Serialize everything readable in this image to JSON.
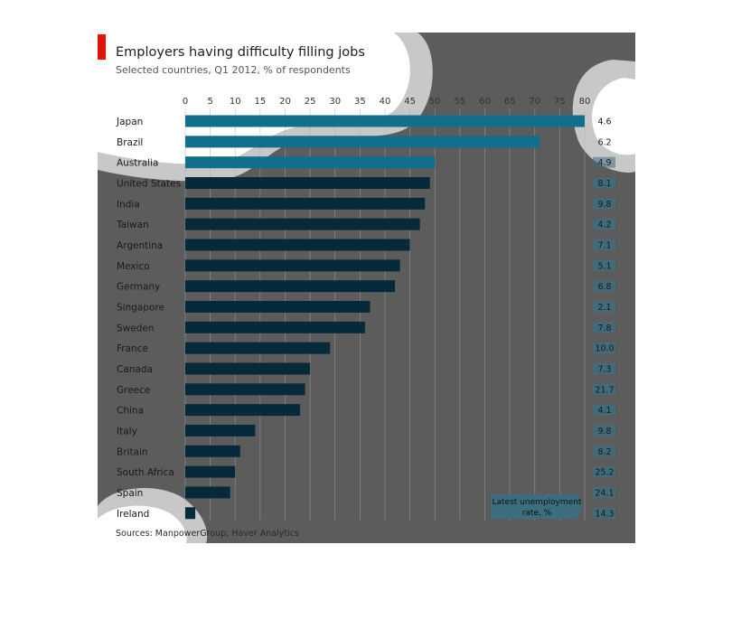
{
  "chart_data": {
    "type": "bar",
    "orientation": "horizontal",
    "title": "Employers having difficulty filling jobs",
    "subtitle": "Selected countries, Q1 2012, % of respondents",
    "xlim": [
      0,
      80
    ],
    "x_ticks": [
      "0",
      "5",
      "10",
      "15",
      "20",
      "25",
      "30",
      "35",
      "40",
      "45",
      "50",
      "55",
      "60",
      "65",
      "70",
      "75",
      "80"
    ],
    "categories": [
      "Japan",
      "Brazil",
      "Australia",
      "United States",
      "India",
      "Taiwan",
      "Argentina",
      "Mexico",
      "Germany",
      "Singapore",
      "Sweden",
      "France",
      "Canada",
      "Greece",
      "China",
      "Italy",
      "Britain",
      "South Africa",
      "Spain",
      "Ireland"
    ],
    "values": [
      80,
      71,
      50,
      49,
      48,
      47,
      45,
      43,
      42,
      37,
      36,
      29,
      25,
      24,
      23,
      14,
      11,
      10,
      9,
      2
    ],
    "unemployment": [
      "4.6",
      "6.2",
      "4.9",
      "8.1",
      "9.8",
      "4.2",
      "7.1",
      "5.1",
      "6.8",
      "2.1",
      "7.8",
      "10.0",
      "7.3",
      "21.7",
      "4.1",
      "9.8",
      "8.2",
      "25.2",
      "24.1",
      "14.3"
    ],
    "unemployment_label": "Latest unemployment rate, %",
    "source": "Sources: ManpowerGroup; Haver Analytics",
    "grid": true,
    "colors": {
      "bar_light": "#0f6f8c",
      "bar_dark": "#072a3a",
      "overlay": "#5c5c5c",
      "overlay_light": "#c8c8c8",
      "accent": "#e3120b",
      "unemp_box": "#3d6e80"
    }
  }
}
